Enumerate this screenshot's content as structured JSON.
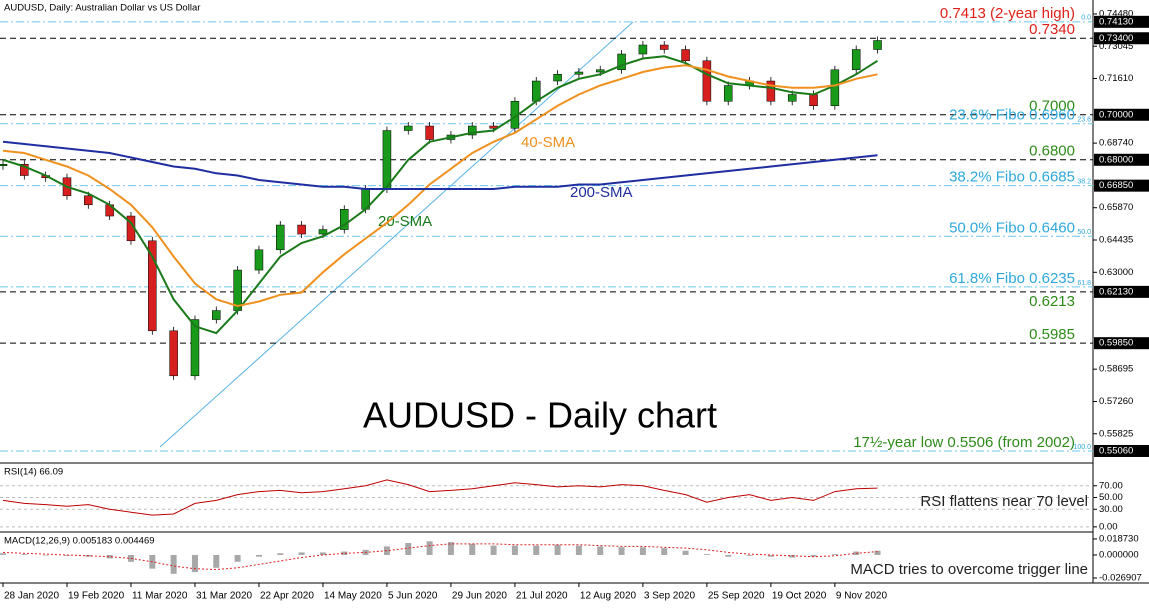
{
  "chart_data": [
    {
      "type": "line",
      "header": "AUDUSD, Daily:  Australian Dollar vs US Dollar",
      "title": "AUDUSD - Daily chart",
      "categories": [
        "28 Jan 2020",
        null,
        null,
        "19 Feb 2020",
        null,
        null,
        "11 Mar 2020",
        null,
        null,
        "31 Mar 2020",
        null,
        null,
        "22 Apr 2020",
        null,
        null,
        "14 May 2020",
        null,
        null,
        "5 Jun 2020",
        null,
        null,
        "29 Jun 2020",
        null,
        null,
        "21 Jul 2020",
        null,
        null,
        "12 Aug 2020",
        null,
        null,
        "3 Sep 2020",
        null,
        null,
        "25 Sep 2020",
        null,
        null,
        "19 Oct 2020",
        null,
        null,
        "9 Nov 2020",
        null,
        null
      ],
      "ylim": [
        0.5457,
        0.751
      ],
      "yticks": [
        {
          "value": 0.7448,
          "label": "0.74480"
        },
        {
          "value": 0.73045,
          "label": "0.73045"
        },
        {
          "value": 0.7161,
          "label": "0.71610"
        },
        {
          "value": 0.6874,
          "label": "0.68740"
        },
        {
          "value": 0.6587,
          "label": "0.65870"
        },
        {
          "value": 0.64435,
          "label": "0.64435"
        },
        {
          "value": 0.63,
          "label": "0.63000"
        },
        {
          "value": 0.58695,
          "label": "0.58695"
        },
        {
          "value": 0.5726,
          "label": "0.57260"
        },
        {
          "value": 0.55825,
          "label": "0.55825"
        }
      ],
      "grid": false,
      "series": [
        {
          "type": "candle",
          "up_color": "#1a9a1a",
          "down_color": "#d62020",
          "values": [
            0.678,
            0.673,
            0.672,
            0.664,
            0.66,
            0.655,
            0.644,
            0.604,
            0.584,
            0.609,
            0.613,
            0.631,
            0.64,
            0.651,
            0.647,
            0.649,
            0.658,
            0.667,
            0.693,
            0.695,
            0.689,
            0.691,
            0.695,
            0.694,
            0.706,
            0.715,
            0.718,
            0.719,
            0.72,
            0.727,
            0.731,
            0.729,
            0.724,
            0.706,
            0.713,
            0.715,
            0.706,
            0.709,
            0.704,
            0.72,
            0.729,
            0.733
          ]
        },
        {
          "name": "20-SMA",
          "color": "#1a7a1a",
          "values": [
            0.68,
            0.677,
            0.673,
            0.668,
            0.665,
            0.66,
            0.652,
            0.637,
            0.618,
            0.606,
            0.603,
            0.613,
            0.625,
            0.637,
            0.643,
            0.646,
            0.651,
            0.658,
            0.668,
            0.68,
            0.688,
            0.69,
            0.692,
            0.693,
            0.699,
            0.706,
            0.712,
            0.716,
            0.718,
            0.722,
            0.725,
            0.726,
            0.723,
            0.718,
            0.714,
            0.713,
            0.712,
            0.71,
            0.709,
            0.713,
            0.718,
            0.724
          ]
        },
        {
          "name": "40-SMA",
          "color": "#f0901e",
          "values": [
            0.684,
            0.683,
            0.68,
            0.677,
            0.673,
            0.667,
            0.66,
            0.65,
            0.637,
            0.625,
            0.618,
            0.615,
            0.617,
            0.62,
            0.621,
            0.63,
            0.638,
            0.645,
            0.652,
            0.66,
            0.669,
            0.676,
            0.683,
            0.688,
            0.692,
            0.698,
            0.704,
            0.709,
            0.713,
            0.716,
            0.719,
            0.721,
            0.722,
            0.72,
            0.717,
            0.715,
            0.713,
            0.712,
            0.712,
            0.713,
            0.716,
            0.718
          ]
        },
        {
          "name": "200-SMA",
          "color": "#1f2ea0",
          "values": [
            0.688,
            0.687,
            0.686,
            0.685,
            0.684,
            0.683,
            0.681,
            0.679,
            0.677,
            0.676,
            0.674,
            0.673,
            0.671,
            0.67,
            0.669,
            0.668,
            0.668,
            0.667,
            0.667,
            0.667,
            0.667,
            0.667,
            0.667,
            0.667,
            0.668,
            0.668,
            0.668,
            0.669,
            0.669,
            0.67,
            0.671,
            0.672,
            0.673,
            0.674,
            0.675,
            0.676,
            0.677,
            0.678,
            0.679,
            0.68,
            0.681,
            0.682
          ]
        }
      ],
      "levels": [
        {
          "value": 0.7413,
          "label": "0.7413 (2-year high)",
          "color": "#6ec6e8",
          "line_style": "dashdot",
          "text_color": "#e0201a",
          "side_label": "0.0",
          "axis_label": "0.74130"
        },
        {
          "value": 0.734,
          "label": "0.7340",
          "color": "#000000",
          "line_style": "dashed",
          "text_color": "#e0201a",
          "axis_label": "0.73400"
        },
        {
          "value": 0.7,
          "label": "0.7000",
          "color": "#000000",
          "line_style": "dashed",
          "text_color": "#2e8b1a",
          "axis_label": "0.70000"
        },
        {
          "value": 0.696,
          "label": "23.6% Fibo 0.6960",
          "color": "#6ec6e8",
          "line_style": "dashdot",
          "text_color": "#2ea8dc",
          "side_label": "23.6"
        },
        {
          "value": 0.68,
          "label": "0.6800",
          "color": "#000000",
          "line_style": "dashed",
          "text_color": "#2e8b1a",
          "axis_label": "0.68000"
        },
        {
          "value": 0.6685,
          "label": "38.2% Fibo 0.6685",
          "color": "#6ec6e8",
          "line_style": "dashdot",
          "text_color": "#2ea8dc",
          "side_label": "38.2",
          "axis_label": "0.66850"
        },
        {
          "value": 0.646,
          "label": "50.0% Fibo 0.6460",
          "color": "#6ec6e8",
          "line_style": "dashdot",
          "text_color": "#2ea8dc",
          "side_label": "50.0"
        },
        {
          "value": 0.6235,
          "label": "61.8% Fibo 0.6235",
          "color": "#6ec6e8",
          "line_style": "dashdot",
          "text_color": "#2ea8dc",
          "side_label": "61.8"
        },
        {
          "value": 0.6213,
          "label": "0.6213",
          "color": "#000000",
          "line_style": "dashed",
          "text_color": "#2e8b1a",
          "axis_label": "0.62130"
        },
        {
          "value": 0.5985,
          "label": "0.5985",
          "color": "#000000",
          "line_style": "dashed",
          "text_color": "#2e8b1a",
          "axis_label": "0.59850"
        },
        {
          "value": 0.5506,
          "label": "17½-year low 0.5506 (from 2002)",
          "color": "#6ec6e8",
          "line_style": "dashdot",
          "text_color": "#2e8b1a",
          "side_label": "100.0",
          "axis_label": "0.55060"
        }
      ]
    },
    {
      "type": "line",
      "header": "RSI(14) 66.09",
      "note": "RSI flattens near 70 level",
      "ylim": [
        -7,
        107
      ],
      "yticks": [
        {
          "value": 70,
          "label": "70.00"
        },
        {
          "value": 50,
          "label": "50.00"
        },
        {
          "value": 30,
          "label": "30.00"
        },
        {
          "value": 0,
          "label": "0.00"
        }
      ],
      "grid": true,
      "series": [
        {
          "color": "#c00000",
          "values": [
            45,
            40,
            38,
            35,
            38,
            30,
            25,
            20,
            22,
            40,
            45,
            55,
            60,
            62,
            58,
            60,
            65,
            70,
            80,
            72,
            60,
            62,
            65,
            70,
            75,
            72,
            68,
            70,
            68,
            72,
            70,
            62,
            55,
            42,
            50,
            55,
            45,
            50,
            45,
            60,
            65,
            66
          ]
        }
      ]
    },
    {
      "type": "bar",
      "header": "MACD(12,26,9) 0.005183 0.004469",
      "note": "MACD tries to overcome trigger line",
      "ylim": [
        -0.0316,
        0.0257
      ],
      "yticks": [
        {
          "value": 0.01873,
          "label": "0.018730"
        },
        {
          "value": 0,
          "label": "0.000000"
        },
        {
          "value": -0.026907,
          "label": "-0.026907"
        }
      ],
      "grid": false,
      "series": [
        {
          "type": "bar",
          "color": "#a8a8a8",
          "values": [
            0.002,
            0.001,
            0,
            -0.001,
            -0.002,
            -0.004,
            -0.008,
            -0.016,
            -0.022,
            -0.02,
            -0.015,
            -0.008,
            -0.002,
            0.002,
            0.003,
            0.003,
            0.004,
            0.006,
            0.01,
            0.014,
            0.016,
            0.015,
            0.013,
            0.011,
            0.011,
            0.011,
            0.012,
            0.011,
            0.01,
            0.009,
            0.009,
            0.008,
            0.005,
            0.001,
            -0.002,
            -0.001,
            -0.002,
            -0.003,
            -0.002,
            0.001,
            0.004,
            0.005
          ]
        },
        {
          "type": "line",
          "color": "#e02020",
          "line_style": "dotted",
          "values": [
            0.003,
            0.002,
            0.001,
            0,
            -0.001,
            -0.002,
            -0.004,
            -0.008,
            -0.013,
            -0.016,
            -0.017,
            -0.015,
            -0.011,
            -0.007,
            -0.003,
            0,
            0.002,
            0.003,
            0.005,
            0.008,
            0.011,
            0.013,
            0.013,
            0.013,
            0.012,
            0.012,
            0.012,
            0.012,
            0.011,
            0.01,
            0.01,
            0.009,
            0.008,
            0.006,
            0.003,
            0.001,
            0,
            -0.001,
            -0.002,
            -0.001,
            0.002,
            0.004
          ]
        }
      ]
    }
  ]
}
